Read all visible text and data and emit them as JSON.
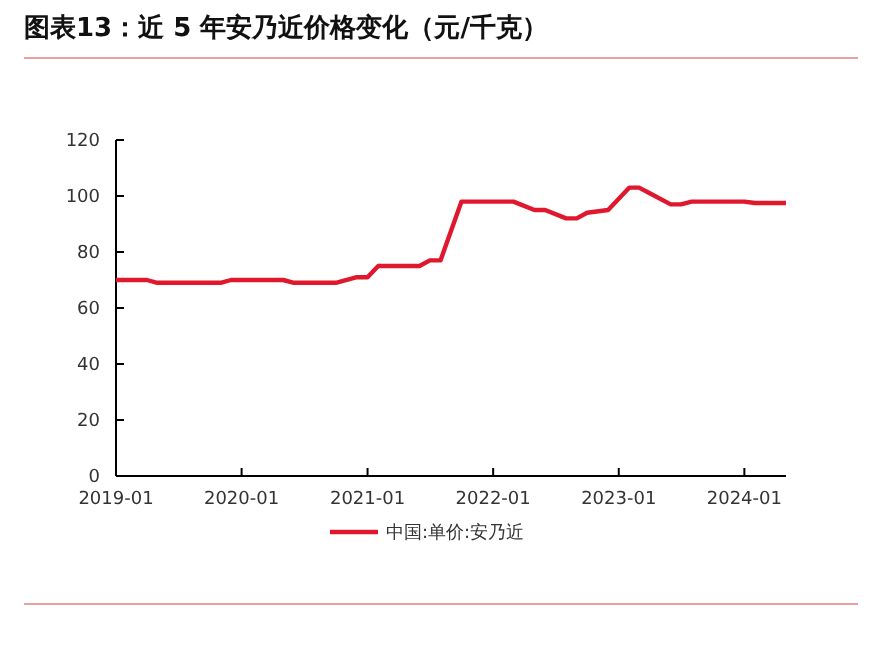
{
  "chart_data": {
    "type": "line",
    "title": "图表13：近 5 年安乃近价格变化（元/千克）",
    "x": [
      "2019-01",
      "2019-04",
      "2019-05",
      "2019-11",
      "2019-12",
      "2020-05",
      "2020-06",
      "2020-10",
      "2020-12",
      "2021-01",
      "2021-02",
      "2021-06",
      "2021-07",
      "2021-08",
      "2021-10",
      "2022-03",
      "2022-05",
      "2022-06",
      "2022-08",
      "2022-09",
      "2022-10",
      "2022-12",
      "2023-02",
      "2023-03",
      "2023-04",
      "2023-06",
      "2023-07",
      "2023-08",
      "2024-01",
      "2024-02",
      "2024-05"
    ],
    "series": [
      {
        "name": "中国:单价:安乃近",
        "color": "#e0182d",
        "values": [
          70,
          70,
          69,
          69,
          70,
          70,
          69,
          69,
          71,
          71,
          75,
          75,
          77,
          77,
          98,
          98,
          95,
          95,
          92,
          92,
          94,
          95,
          103,
          103,
          101,
          97,
          97,
          98,
          98,
          97.5,
          97.5
        ]
      }
    ],
    "xlim": [
      "2019-01",
      "2024-05"
    ],
    "xticks": [
      "2019-01",
      "2020-01",
      "2021-01",
      "2022-01",
      "2023-01",
      "2024-01"
    ],
    "ylim": [
      0,
      120
    ],
    "yticks": [
      0,
      20,
      40,
      60,
      80,
      100,
      120
    ],
    "legend": "bottom",
    "grid": false
  }
}
